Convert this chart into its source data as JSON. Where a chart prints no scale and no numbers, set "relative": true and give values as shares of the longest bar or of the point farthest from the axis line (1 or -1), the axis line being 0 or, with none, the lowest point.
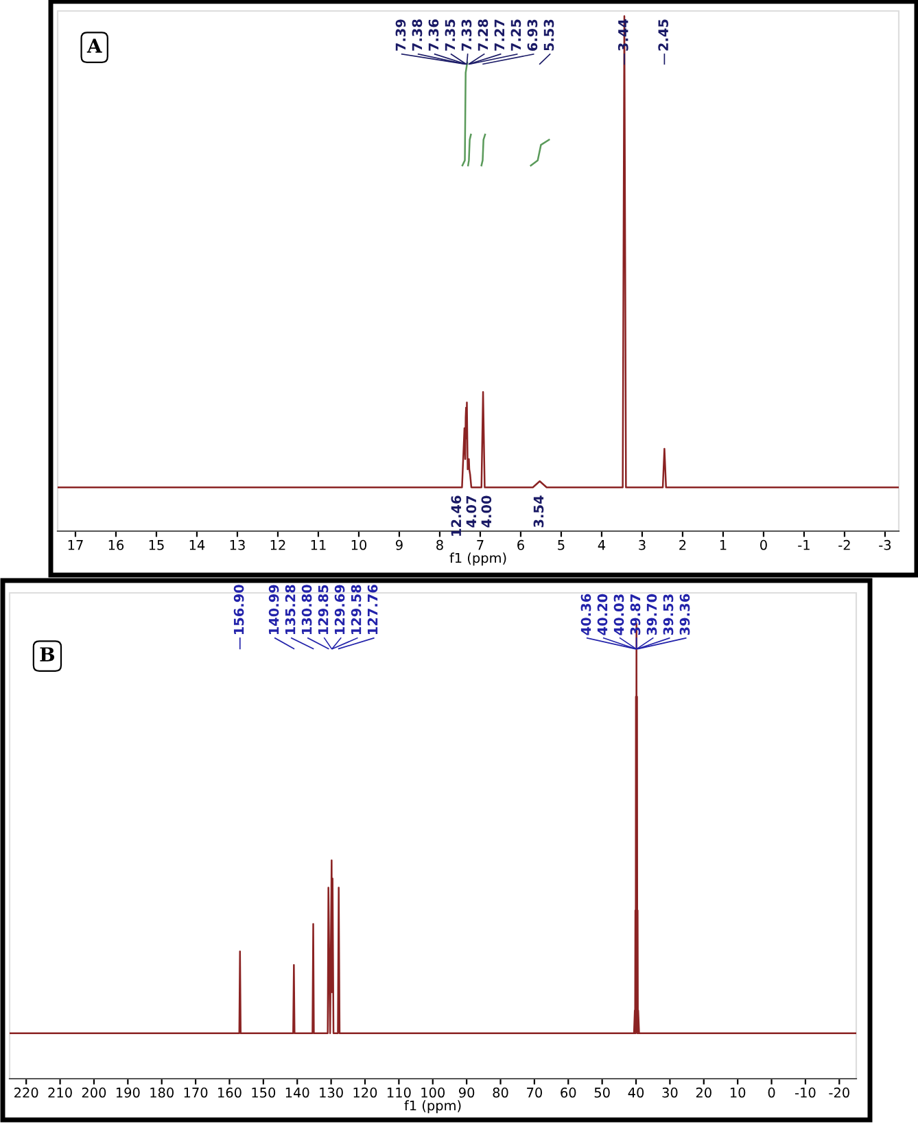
{
  "chart_data": [
    {
      "type": "line",
      "title": "A",
      "xlabel": "f1 (ppm)",
      "relative": true,
      "xlim": [
        17.44,
        -3.34
      ],
      "xticks": [
        17,
        16,
        15,
        14,
        13,
        12,
        11,
        10,
        9,
        8,
        7,
        6,
        5,
        4,
        3,
        2,
        1,
        0,
        {
          "value": -1,
          "label": "-1"
        },
        {
          "value": -2,
          "label": "-2"
        },
        {
          "value": -3,
          "label": "-3"
        }
      ],
      "series": [
        {
          "color": "#8b2323",
          "x": [
            17.44,
            7.45,
            7.4,
            7.39,
            7.37,
            7.36,
            7.35,
            7.34,
            7.33,
            7.31,
            7.28,
            7.27,
            7.25,
            7.22,
            6.97,
            6.93,
            6.89,
            5.7,
            5.53,
            5.36,
            3.48,
            3.44,
            3.4,
            2.49,
            2.45,
            2.41,
            -3.34
          ],
          "values": [
            0.085,
            0.085,
            0.18,
            0.2,
            0.14,
            0.22,
            0.24,
            0.18,
            0.25,
            0.12,
            0.14,
            0.12,
            0.11,
            0.085,
            0.085,
            0.27,
            0.085,
            0.085,
            0.097,
            0.085,
            0.085,
            1,
            0.085,
            0.085,
            0.16,
            0.085,
            0.085
          ]
        },
        {
          "color": "#5a9a5a",
          "x": [
            7.44,
            7.38,
            7.36,
            7.32,
            7.31,
            7.3,
            7.28,
            7.26,
            7.23,
            7.0,
            6.97,
            6.94,
            6.92,
            6.88,
            6.0,
            5.75,
            5.58,
            5.5,
            5.3
          ],
          "values": [
            0.71,
            0.72,
            0.89,
            0.91,
            null,
            0.71,
            0.72,
            0.76,
            0.77,
            null,
            0.71,
            0.72,
            0.76,
            0.77,
            null,
            0.71,
            0.72,
            0.75,
            0.76
          ]
        }
      ],
      "annotations": [
        {
          "text": "7.39",
          "x": 7.39
        },
        {
          "text": "7.38",
          "x": 7.38
        },
        {
          "text": "7.36",
          "x": 7.36
        },
        {
          "text": "7.35",
          "x": 7.35
        },
        {
          "text": "7.33",
          "x": 7.33
        },
        {
          "text": "7.28",
          "x": 7.28
        },
        {
          "text": "7.27",
          "x": 7.27
        },
        {
          "text": "7.25",
          "x": 7.25
        },
        {
          "text": "6.93",
          "x": 6.93
        },
        {
          "text": "5.53",
          "x": 5.53
        },
        {
          "text": "3.44",
          "x": 3.44
        },
        {
          "text": "2.45",
          "x": 2.45
        },
        {
          "text": "12.46",
          "x": 7.38,
          "y": 0.085
        },
        {
          "text": "4.07",
          "x": 7.27,
          "y": 0.085
        },
        {
          "text": "4.00",
          "x": 6.93,
          "y": 0.085
        },
        {
          "text": "3.54",
          "x": 5.53,
          "y": 0.085
        }
      ]
    },
    {
      "type": "line",
      "title": "B",
      "xlabel": "f1 (ppm)",
      "relative": true,
      "xlim": [
        224.9,
        -25
      ],
      "xticks": [
        220,
        210,
        200,
        190,
        180,
        170,
        160,
        150,
        140,
        130,
        120,
        110,
        100,
        90,
        80,
        70,
        60,
        50,
        40,
        30,
        20,
        10,
        0,
        {
          "value": -10,
          "label": "-10"
        },
        {
          "value": -20,
          "label": "-20"
        }
      ],
      "series": [
        {
          "color": "#8b2323",
          "x": [
            224.9,
            157.1,
            156.9,
            156.7,
            141.2,
            140.99,
            140.8,
            135.5,
            135.28,
            135.1,
            131.0,
            130.8,
            130.3,
            129.85,
            129.75,
            129.69,
            129.63,
            129.58,
            129.3,
            128.0,
            127.76,
            127.5,
            40.6,
            40.36,
            40.28,
            40.2,
            40.1,
            40.03,
            39.95,
            39.87,
            39.78,
            39.7,
            39.62,
            39.53,
            39.45,
            39.36,
            39.1,
            -25
          ],
          "values": [
            0.1,
            0.1,
            0.28,
            0.1,
            0.1,
            0.25,
            0.1,
            0.1,
            0.34,
            0.1,
            0.1,
            0.42,
            0.1,
            0.48,
            0.19,
            0.37,
            0.19,
            0.44,
            0.1,
            0.1,
            0.42,
            0.1,
            0.1,
            0.15,
            0.1,
            0.37,
            0.1,
            0.84,
            0.19,
            1,
            0.19,
            0.84,
            0.1,
            0.37,
            0.1,
            0.15,
            0.1,
            0.1
          ]
        }
      ],
      "annotations": [
        {
          "text": "156.90",
          "x": 156.9
        },
        {
          "text": "140.99",
          "x": 140.99
        },
        {
          "text": "135.28",
          "x": 135.28
        },
        {
          "text": "130.80",
          "x": 130.8
        },
        {
          "text": "129.85",
          "x": 129.85
        },
        {
          "text": "129.69",
          "x": 129.69
        },
        {
          "text": "129.58",
          "x": 129.58
        },
        {
          "text": "127.76",
          "x": 127.76
        },
        {
          "text": "40.36",
          "x": 40.36
        },
        {
          "text": "40.20",
          "x": 40.2
        },
        {
          "text": "40.03",
          "x": 40.03
        },
        {
          "text": "39.87",
          "x": 39.87
        },
        {
          "text": "39.70",
          "x": 39.7
        },
        {
          "text": "39.53",
          "x": 39.53
        },
        {
          "text": "39.36",
          "x": 39.36
        }
      ]
    }
  ]
}
